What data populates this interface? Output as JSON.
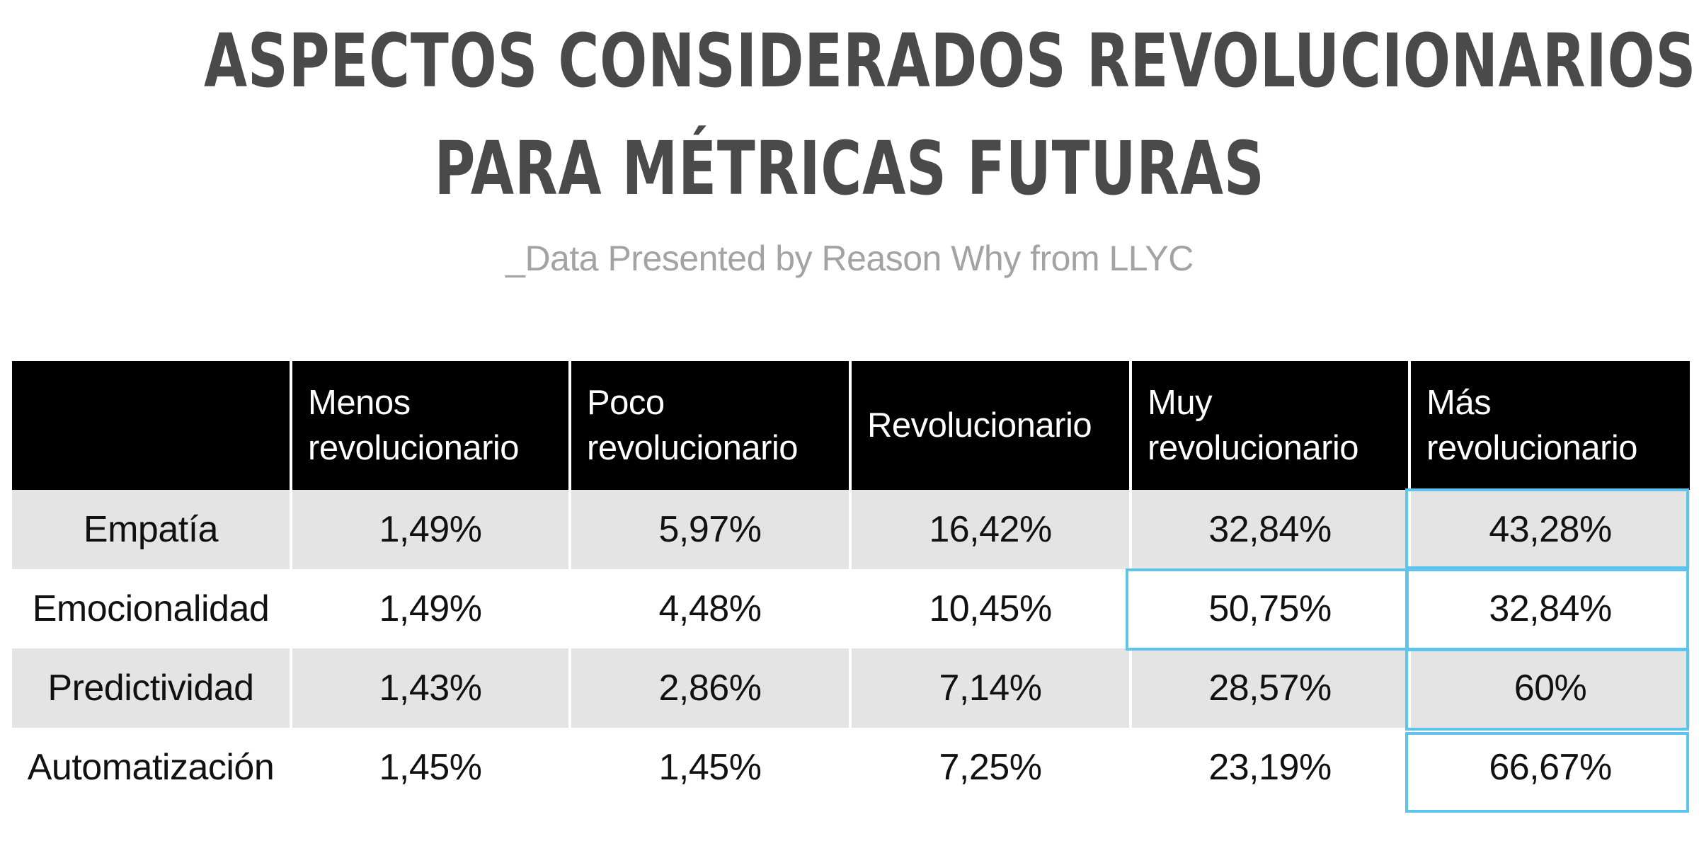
{
  "chart_data": {
    "type": "table",
    "title_lines": [
      "ASPECTOS CONSIDERADOS REVOLUCIONARIOS",
      "PARA MÉTRICAS FUTURAS"
    ],
    "subtitle": "_Data Presented by Reason Why from LLYC",
    "columns": [
      "",
      "Menos\nrevolucionario",
      "Poco\nrevolucionario",
      "Revolucionario",
      "Muy\nrevolucionario",
      "Más\nrevolucionario"
    ],
    "rows": [
      {
        "label": "Empatía",
        "values": [
          "1,49%",
          "5,97%",
          "16,42%",
          "32,84%",
          "43,28%"
        ]
      },
      {
        "label": "Emocionalidad",
        "values": [
          "1,49%",
          "4,48%",
          "10,45%",
          "50,75%",
          "32,84%"
        ]
      },
      {
        "label": "Predictividad",
        "values": [
          "1,43%",
          "2,86%",
          "7,14%",
          "28,57%",
          "60%"
        ]
      },
      {
        "label": "Automatización",
        "values": [
          "1,45%",
          "1,45%",
          "7,25%",
          "23,19%",
          "66,67%"
        ]
      }
    ],
    "highlighted_cells": [
      {
        "row": "Empatía",
        "column": "Más\nrevolucionario"
      },
      {
        "row": "Emocionalidad",
        "column": "Muy\nrevolucionario"
      },
      {
        "row": "Emocionalidad",
        "column": "Más\nrevolucionario"
      },
      {
        "row": "Predictividad",
        "column": "Más\nrevolucionario"
      },
      {
        "row": "Automatización",
        "column": "Más\nrevolucionario"
      }
    ],
    "colors": {
      "title": "#4a4a4a",
      "subtitle": "#a3a3a3",
      "header_bg": "#000000",
      "header_text": "#ffffff",
      "shaded_row": "#e4e4e4",
      "highlight": "#5ec4ec"
    }
  }
}
